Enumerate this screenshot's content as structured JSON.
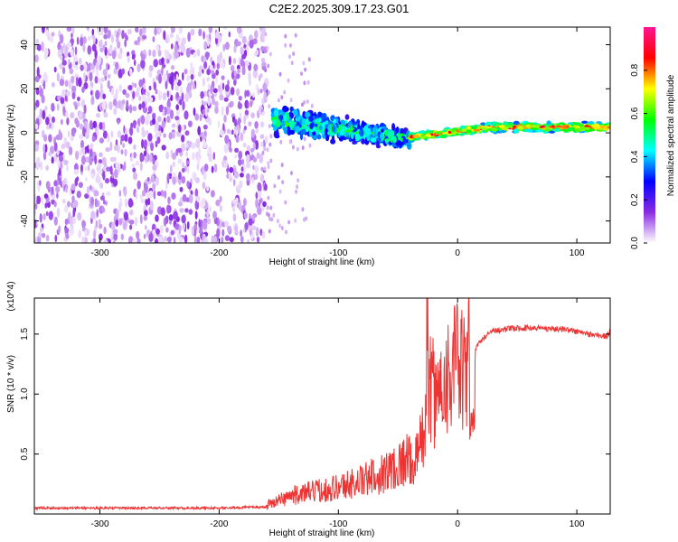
{
  "title": "C2E2.2025.309.17.23.G01",
  "chart_data": [
    {
      "type": "heatmap",
      "xlabel": "Height of straight line (km)",
      "ylabel": "Frequency (Hz)",
      "xlim": [
        -355,
        128
      ],
      "ylim": [
        -50,
        48
      ],
      "xticks": [
        -300,
        -200,
        -100,
        0,
        100
      ],
      "yticks": [
        -40,
        -20,
        0,
        20,
        40
      ],
      "colorbar": {
        "label": "Normalized spectral amplitude",
        "range": [
          0,
          1
        ],
        "ticks": [
          "0.0",
          "0.2",
          "0.4",
          "0.6",
          "0.8"
        ],
        "tick_values": [
          0,
          0.2,
          0.4,
          0.6,
          0.8
        ],
        "colors": [
          "#ffffff",
          "#8a2be2",
          "#0000ff",
          "#00ffff",
          "#00ff00",
          "#ffff00",
          "#ff0000",
          "#ff1493"
        ]
      },
      "bands": [
        {
          "region": "noise",
          "x_range": [
            -355,
            -160
          ],
          "freq_range": [
            -50,
            48
          ],
          "amplitude": [
            0.02,
            0.15
          ]
        },
        {
          "region": "signal-onset",
          "x_range": [
            -155,
            -40
          ],
          "freq_center": [
            6,
            -3
          ],
          "freq_halfwidth": [
            9,
            5
          ],
          "amplitude": [
            0.2,
            0.55
          ]
        },
        {
          "region": "tone",
          "x_range": [
            -40,
            128
          ],
          "freq_center": [
            -2,
            2.5
          ],
          "freq_halfwidth": [
            2,
            2.5
          ],
          "amplitude": [
            0.4,
            0.95
          ]
        }
      ]
    },
    {
      "type": "line",
      "xlabel": "Height of straight line (km)",
      "ylabel": "SNR (10 * v/v)",
      "y_multiplier": "(x10^4)",
      "xlim": [
        -355,
        128
      ],
      "ylim": [
        0,
        1.8
      ],
      "xticks": [
        -300,
        -200,
        -100,
        0,
        100
      ],
      "yticks": [
        0.5,
        1.0,
        1.5
      ],
      "ytick_labels": [
        "0.5",
        "1.0",
        "1.5"
      ],
      "series": [
        {
          "color": "#ee3333",
          "x": [
            -355,
            -300,
            -250,
            -200,
            -160,
            -150,
            -140,
            -120,
            -100,
            -80,
            -60,
            -45,
            -35,
            -28,
            -25,
            -22,
            -18,
            -15,
            -10,
            -5,
            0,
            5,
            10,
            20,
            30,
            50,
            70,
            90,
            110,
            125,
            128
          ],
          "y": [
            0.05,
            0.05,
            0.05,
            0.05,
            0.06,
            0.09,
            0.12,
            0.15,
            0.18,
            0.22,
            0.28,
            0.35,
            0.45,
            0.7,
            1.0,
            1.05,
            0.95,
            1.05,
            1.15,
            1.2,
            1.25,
            1.15,
            1.3,
            1.45,
            1.53,
            1.55,
            1.55,
            1.54,
            1.5,
            1.48,
            1.52
          ]
        }
      ]
    }
  ]
}
